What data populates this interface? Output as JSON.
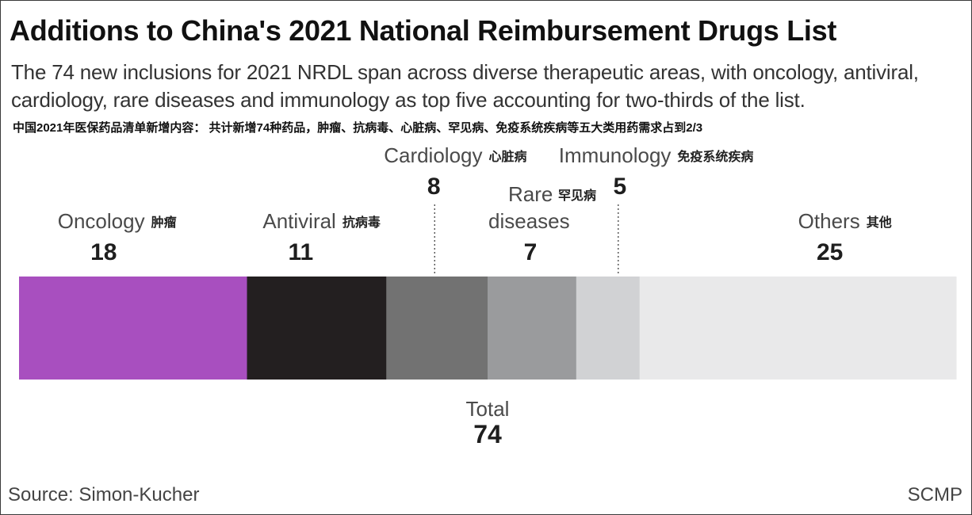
{
  "header": {
    "title": "Additions to China's 2021 National Reimbursement Drugs List",
    "subtitle": "The 74 new inclusions for 2021 NRDL span across diverse therapeutic areas, with oncology, antiviral, cardiology, rare diseases and immunology as top five accounting for two-thirds of the list.",
    "subtitle_cn": "中国2021年医保药品清单新增内容： 共计新增74种药品，肿瘤、抗病毒、心脏病、罕见病、免疫系统疾病等五大类用药需求占到2/3"
  },
  "chart_data": {
    "type": "bar",
    "orientation": "horizontal-stacked",
    "title": "Additions to China's 2021 National Reimbursement Drugs List",
    "total_label": "Total",
    "total": 74,
    "series": [
      {
        "name": "Oncology",
        "name_cn": "肿瘤",
        "value": 18,
        "color": "#a84fbf"
      },
      {
        "name": "Antiviral",
        "name_cn": "抗病毒",
        "value": 11,
        "color": "#231f20"
      },
      {
        "name": "Cardiology",
        "name_cn": "心脏病",
        "value": 8,
        "color": "#727272"
      },
      {
        "name": "Rare diseases",
        "name_lines": [
          "Rare",
          "diseases"
        ],
        "name_cn": "罕见病",
        "value": 7,
        "color": "#9a9b9d"
      },
      {
        "name": "Immunology",
        "name_cn": "免疫系统疾病",
        "value": 5,
        "color": "#d1d2d4"
      },
      {
        "name": "Others",
        "name_cn": "其他",
        "value": 25,
        "color": "#e9e9ea"
      }
    ]
  },
  "footer": {
    "source": "Source: Simon-Kucher",
    "credit": "SCMP"
  }
}
